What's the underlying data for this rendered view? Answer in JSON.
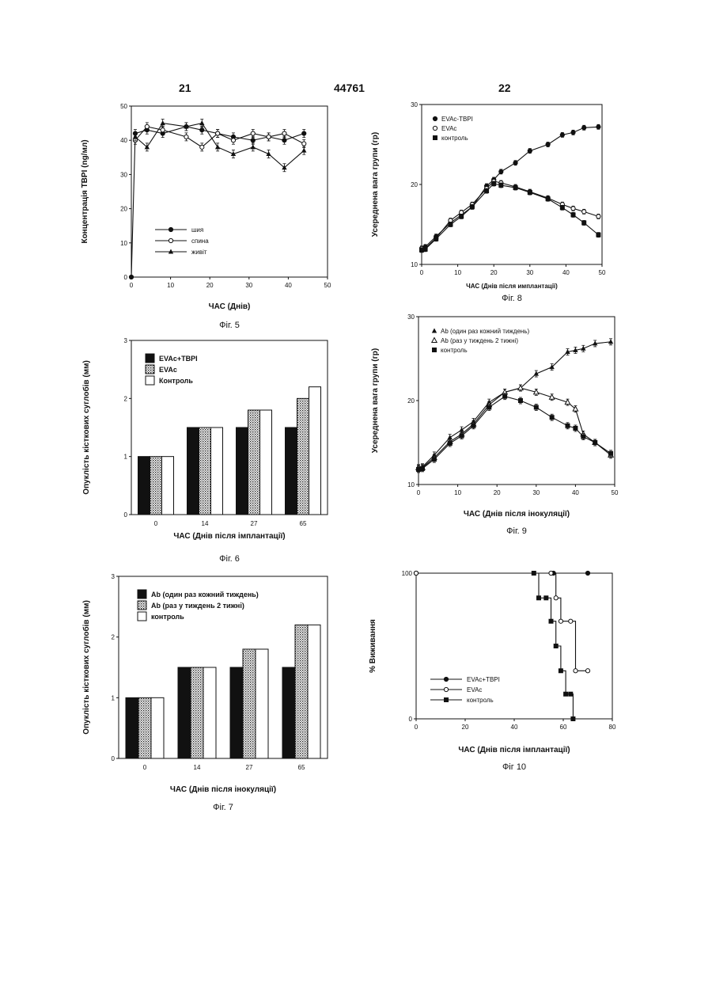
{
  "page_header": {
    "left": "21",
    "center": "44761",
    "right": "22"
  },
  "chart_data": [
    {
      "id": "fig5",
      "type": "line",
      "caption": "Фіг. 5",
      "xlabel": "ЧАС (Днів)",
      "ylabel": "Концентрація TBPI (ng/мл)",
      "xlim": [
        0,
        50
      ],
      "ylim": [
        0,
        50
      ],
      "xticks": [
        0,
        10,
        20,
        30,
        40,
        50
      ],
      "yticks": [
        0,
        10,
        20,
        30,
        40,
        50
      ],
      "legend_position": "bottom-left",
      "series": [
        {
          "name": "шия",
          "marker": "filled-circle",
          "x": [
            0,
            1,
            4,
            8,
            14,
            18,
            22,
            26,
            31,
            35,
            39,
            44
          ],
          "y": [
            0,
            42,
            43,
            42,
            44,
            43,
            42,
            41,
            40,
            41,
            40,
            42
          ]
        },
        {
          "name": "спина",
          "marker": "open-circle",
          "x": [
            1,
            4,
            8,
            14,
            18,
            22,
            26,
            31,
            35,
            39,
            44
          ],
          "y": [
            40,
            44,
            43,
            41,
            38,
            42,
            40,
            42,
            41,
            42,
            39
          ]
        },
        {
          "name": "живіт",
          "marker": "filled-triangle",
          "x": [
            1,
            4,
            8,
            14,
            18,
            22,
            26,
            31,
            35,
            39,
            44
          ],
          "y": [
            41,
            38,
            45,
            44,
            45,
            38,
            36,
            38,
            36,
            32,
            37
          ]
        }
      ]
    },
    {
      "id": "fig8",
      "type": "line",
      "caption": "Фіг. 8",
      "xlabel": "ЧАС (Днів після имплантації)",
      "ylabel": "Усереднена вага групи (гр)",
      "xlim": [
        0,
        50
      ],
      "ylim": [
        10,
        30
      ],
      "xticks": [
        0,
        10,
        20,
        30,
        40,
        50
      ],
      "yticks": [
        10,
        20,
        30
      ],
      "legend_position": "top-left",
      "series": [
        {
          "name": "EVAc-TBPI",
          "marker": "filled-circle",
          "x": [
            0,
            1,
            4,
            8,
            11,
            14,
            18,
            20,
            22,
            26,
            30,
            35,
            39,
            42,
            45,
            49
          ],
          "y": [
            12.0,
            12.2,
            13.5,
            15.2,
            16.2,
            17.2,
            19.8,
            20.6,
            21.6,
            22.7,
            24.2,
            25.0,
            26.2,
            26.5,
            27.1,
            27.2
          ]
        },
        {
          "name": "EVAc",
          "marker": "open-circle",
          "x": [
            0,
            1,
            4,
            8,
            11,
            14,
            18,
            20,
            22,
            26,
            30,
            35,
            39,
            42,
            45,
            49
          ],
          "y": [
            12.0,
            12.0,
            13.3,
            15.5,
            16.5,
            17.5,
            19.5,
            20.4,
            20.2,
            19.7,
            19.1,
            18.3,
            17.5,
            17.0,
            16.6,
            16.0
          ]
        },
        {
          "name": "контроль",
          "marker": "filled-square",
          "x": [
            0,
            1,
            4,
            8,
            11,
            14,
            18,
            20,
            22,
            26,
            30,
            35,
            39,
            42,
            45,
            49
          ],
          "y": [
            11.8,
            11.9,
            13.2,
            15.0,
            16.0,
            17.2,
            19.2,
            20.1,
            19.9,
            19.6,
            19.0,
            18.2,
            17.1,
            16.2,
            15.2,
            13.7
          ]
        }
      ]
    },
    {
      "id": "fig6",
      "type": "bar",
      "caption": "Фіг. 6",
      "xlabel": "ЧАС (Днів після імплантації)",
      "ylabel": "Опуклість кісткових суглобів (мм)",
      "ylim": [
        0,
        3
      ],
      "yticks": [
        0,
        1,
        2,
        3
      ],
      "categories": [
        "0",
        "14",
        "27",
        "65"
      ],
      "legend_position": "top-left",
      "series": [
        {
          "name": "EVAc+TBPI",
          "fill": "solid",
          "values": [
            1.0,
            1.5,
            1.5,
            1.5
          ]
        },
        {
          "name": "EVAc",
          "fill": "dotted",
          "values": [
            1.0,
            1.5,
            1.8,
            2.0
          ]
        },
        {
          "name": "Контроль",
          "fill": "empty",
          "values": [
            1.0,
            1.5,
            1.8,
            2.2
          ]
        }
      ]
    },
    {
      "id": "fig9",
      "type": "line",
      "caption": "Фіг. 9",
      "xlabel": "ЧАС (Днів після інокуляції)",
      "ylabel": "Усереднена вага групи (гр)",
      "xlim": [
        0,
        50
      ],
      "ylim": [
        10,
        30
      ],
      "xticks": [
        0,
        10,
        20,
        30,
        40,
        50
      ],
      "yticks": [
        10,
        20,
        30
      ],
      "legend_position": "top-left",
      "series": [
        {
          "name": "Ab (один раз кожний тиждень)",
          "marker": "filled-triangle",
          "x": [
            0,
            1,
            4,
            8,
            11,
            14,
            18,
            22,
            26,
            30,
            34,
            38,
            40,
            42,
            45,
            49
          ],
          "y": [
            11.9,
            12.1,
            13.5,
            15.6,
            16.5,
            17.5,
            19.8,
            21.0,
            21.5,
            23.2,
            24.0,
            25.8,
            26.0,
            26.2,
            26.8,
            27.0
          ]
        },
        {
          "name": "Ab (раз у тиждень 2 тижні)",
          "marker": "open-triangle",
          "x": [
            0,
            1,
            4,
            8,
            11,
            14,
            18,
            22,
            26,
            30,
            34,
            38,
            40,
            42,
            45,
            49
          ],
          "y": [
            12.0,
            12.0,
            13.2,
            15.1,
            16.0,
            17.2,
            19.5,
            21.0,
            21.5,
            21.0,
            20.4,
            19.8,
            19.0,
            16.0,
            15.0,
            13.5
          ]
        },
        {
          "name": "контроль",
          "marker": "filled-square",
          "x": [
            0,
            1,
            4,
            8,
            11,
            14,
            18,
            22,
            26,
            30,
            34,
            38,
            40,
            42,
            45,
            49
          ],
          "y": [
            11.8,
            11.9,
            13.0,
            14.9,
            15.8,
            17.0,
            19.2,
            20.5,
            20.0,
            19.2,
            18.0,
            17.0,
            16.7,
            15.7,
            15.0,
            13.7
          ]
        }
      ]
    },
    {
      "id": "fig7",
      "type": "bar",
      "caption": "Фіг. 7",
      "xlabel": "ЧАС (Днів після інокуляції)",
      "ylabel": "Опуклість кісткових суглобів (мм)",
      "ylim": [
        0,
        3
      ],
      "yticks": [
        0,
        1,
        2,
        3
      ],
      "categories": [
        "0",
        "14",
        "27",
        "65"
      ],
      "legend_position": "top-left",
      "series": [
        {
          "name": "Ab (один раз кожний тиждень)",
          "fill": "solid",
          "values": [
            1.0,
            1.5,
            1.5,
            1.5
          ]
        },
        {
          "name": "Ab (раз у тиждень 2 тижні)",
          "fill": "dotted",
          "values": [
            1.0,
            1.5,
            1.8,
            2.2
          ]
        },
        {
          "name": "контроль",
          "fill": "empty",
          "values": [
            1.0,
            1.5,
            1.8,
            2.2
          ]
        }
      ]
    },
    {
      "id": "fig10",
      "type": "line",
      "caption": "Фіг 10",
      "xlabel": "ЧАС (Днів після імплантації)",
      "ylabel": "% Виживання",
      "xlim": [
        0,
        80
      ],
      "ylim": [
        0,
        100
      ],
      "xticks": [
        0,
        20,
        40,
        60,
        80
      ],
      "yticks": [
        0,
        100
      ],
      "legend_position": "bottom-left",
      "step": true,
      "series": [
        {
          "name": "EVAc+TBPI",
          "marker": "filled-circle",
          "x": [
            0,
            56,
            70
          ],
          "y": [
            100,
            100,
            100
          ]
        },
        {
          "name": "EVAc",
          "marker": "open-circle",
          "x": [
            0,
            55,
            57,
            59,
            63,
            65,
            70
          ],
          "y": [
            100,
            100,
            83,
            67,
            67,
            33,
            33
          ]
        },
        {
          "name": "контроль",
          "marker": "filled-square",
          "x": [
            48,
            50,
            53,
            55,
            57,
            59,
            61,
            63,
            64
          ],
          "y": [
            100,
            83,
            83,
            67,
            50,
            33,
            17,
            17,
            0
          ]
        }
      ]
    }
  ]
}
